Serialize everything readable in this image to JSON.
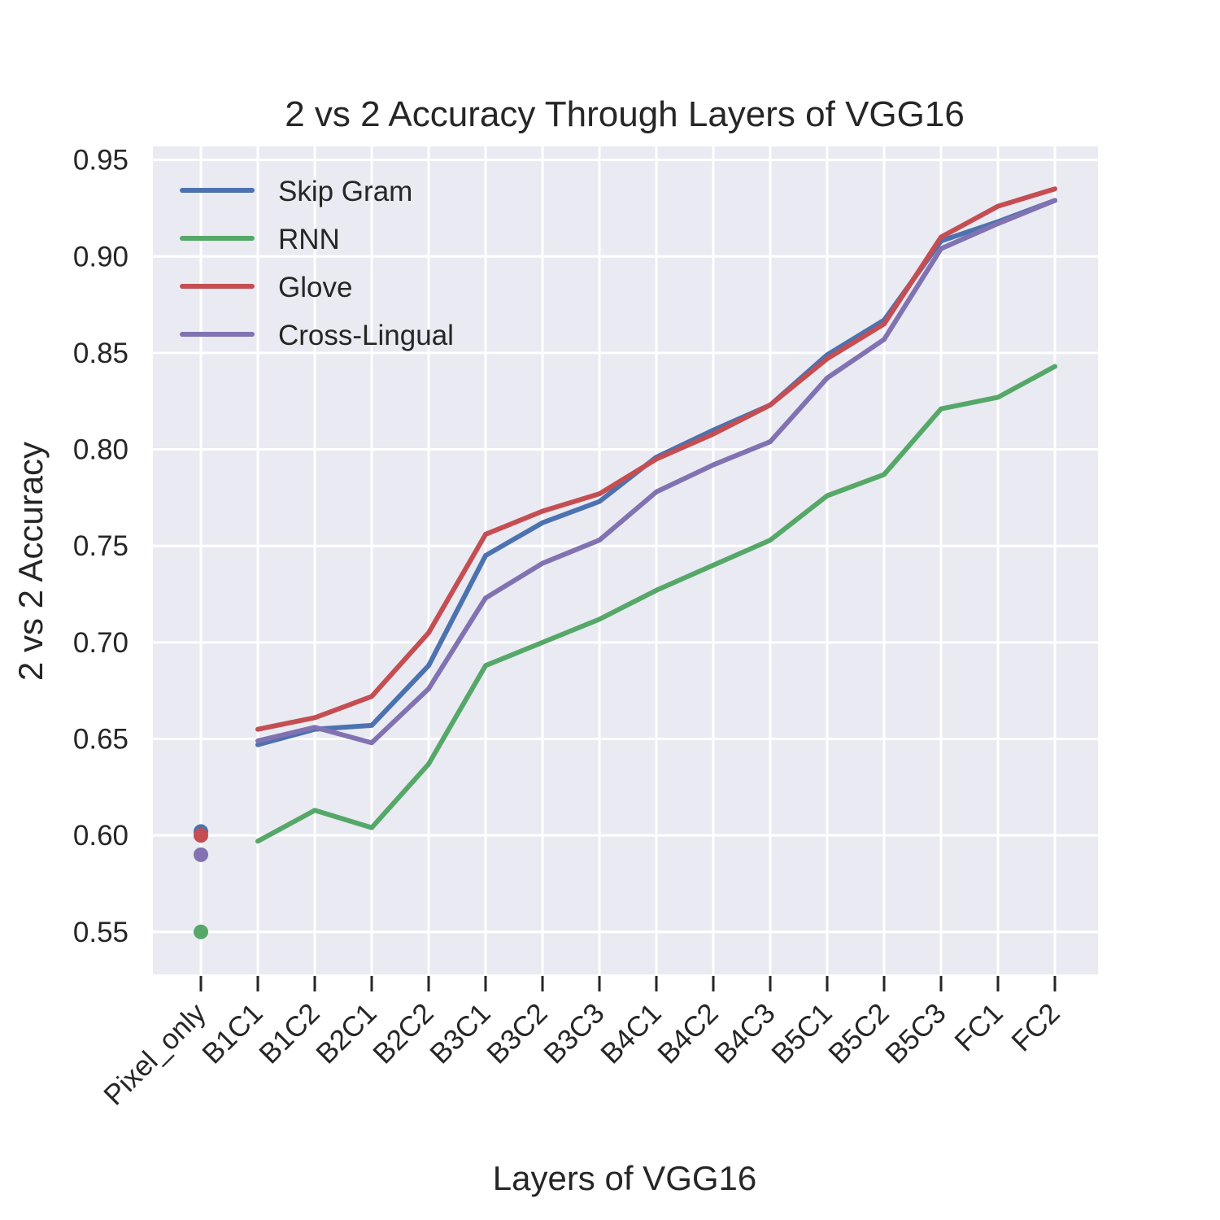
{
  "chart_data": {
    "type": "line",
    "title": "2 vs 2 Accuracy Through Layers of VGG16",
    "xlabel": "Layers of VGG16",
    "ylabel": "2 vs 2 Accuracy",
    "categories": [
      "Pixel_only",
      "B1C1",
      "B1C2",
      "B2C1",
      "B2C2",
      "B3C1",
      "B3C2",
      "B3C3",
      "B4C1",
      "B4C2",
      "B4C3",
      "B5C1",
      "B5C2",
      "B5C3",
      "FC1",
      "FC2"
    ],
    "ylim": [
      0.528,
      0.957
    ],
    "yticks": [
      "0.55",
      "0.60",
      "0.65",
      "0.70",
      "0.75",
      "0.80",
      "0.85",
      "0.90",
      "0.95"
    ],
    "grid": true,
    "legend_position": "top-left",
    "pixel_only_markers": true,
    "series": [
      {
        "name": "Skip Gram",
        "color": "#4c72b0",
        "values": [
          0.602,
          0.647,
          0.655,
          0.657,
          0.688,
          0.745,
          0.762,
          0.773,
          0.796,
          0.81,
          0.823,
          0.849,
          0.867,
          0.908,
          0.918,
          0.929
        ]
      },
      {
        "name": "RNN",
        "color": "#55a868",
        "values": [
          0.55,
          0.597,
          0.613,
          0.604,
          0.637,
          0.688,
          0.7,
          0.712,
          0.727,
          0.74,
          0.753,
          0.776,
          0.787,
          0.821,
          0.827,
          0.843
        ]
      },
      {
        "name": "Glove",
        "color": "#c44e52",
        "values": [
          0.6,
          0.655,
          0.661,
          0.672,
          0.705,
          0.756,
          0.768,
          0.777,
          0.795,
          0.808,
          0.823,
          0.847,
          0.865,
          0.91,
          0.926,
          0.935
        ]
      },
      {
        "name": "Cross-Lingual",
        "color": "#8172b2",
        "values": [
          0.59,
          0.649,
          0.656,
          0.648,
          0.676,
          0.723,
          0.741,
          0.753,
          0.778,
          0.792,
          0.804,
          0.837,
          0.857,
          0.904,
          0.917,
          0.929
        ]
      }
    ]
  },
  "colors": {
    "background": "#eaeaf2",
    "grid": "#ffffff",
    "text": "#262626"
  }
}
